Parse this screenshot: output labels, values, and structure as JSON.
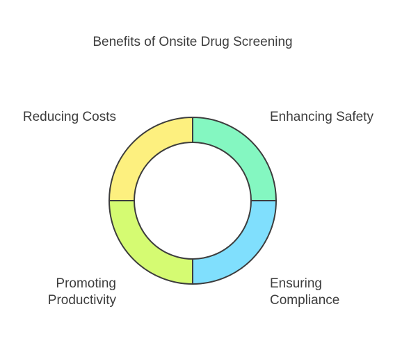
{
  "diagram": {
    "title": "Benefits of Onsite Drug Screening",
    "segments": [
      {
        "id": "enhancing-safety",
        "label": "Enhancing Safety",
        "color": "#84f7c1",
        "quadrant": "top-right"
      },
      {
        "id": "ensuring-compliance",
        "label": "Ensuring\nCompliance",
        "color": "#80dffd",
        "quadrant": "bottom-right"
      },
      {
        "id": "promoting-productivity",
        "label": "Promoting\nProductivity",
        "color": "#d5fb72",
        "quadrant": "bottom-left"
      },
      {
        "id": "reducing-costs",
        "label": "Reducing Costs",
        "color": "#fdf07f",
        "quadrant": "top-left"
      }
    ],
    "stroke_color": "#3d3d3d"
  }
}
